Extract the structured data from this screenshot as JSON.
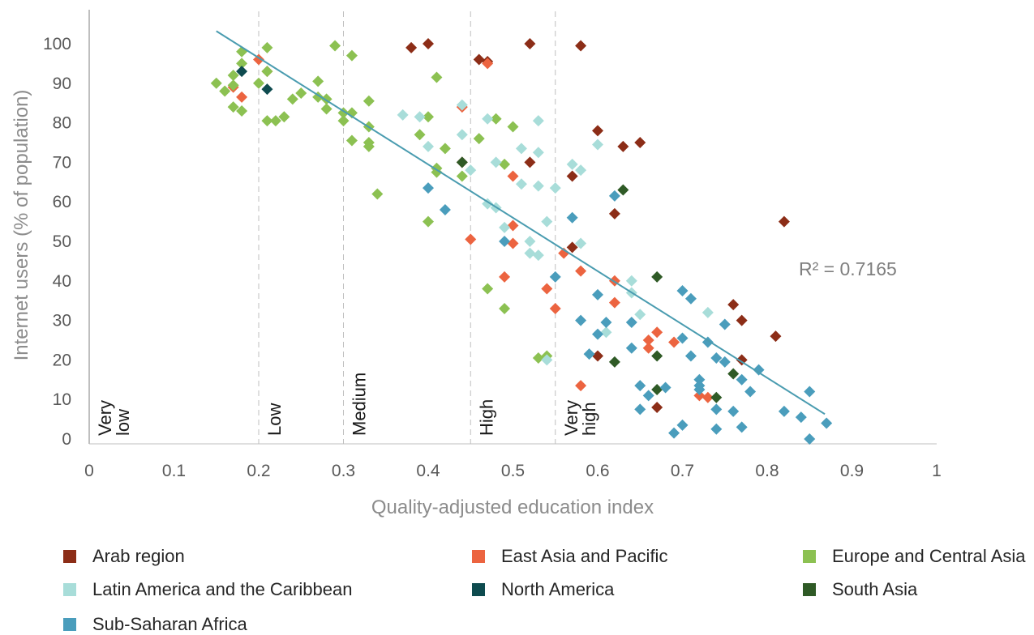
{
  "chart_data": {
    "type": "scatter",
    "xlabel": "Quality-adjusted education index",
    "ylabel": "Internet users (% of population)",
    "xlim": [
      0,
      1
    ],
    "ylim": [
      0,
      100
    ],
    "x_ticks": [
      "0",
      "0.1",
      "0.2",
      "0.3",
      "0.4",
      "0.5",
      "0.6",
      "0.7",
      "0.8",
      "0.9",
      "1"
    ],
    "y_ticks": [
      "0",
      "10",
      "20",
      "30",
      "40",
      "50",
      "60",
      "70",
      "80",
      "90",
      "100"
    ],
    "grid": false,
    "legend_position": "bottom",
    "bands": [
      {
        "line1": "Very",
        "line2": "low",
        "x": 0.0
      },
      {
        "line1": "Low",
        "line2": "",
        "x": 0.2
      },
      {
        "line1": "Medium",
        "line2": "",
        "x": 0.3
      },
      {
        "line1": "High",
        "line2": "",
        "x": 0.45
      },
      {
        "line1": "Very",
        "line2": "high",
        "x": 0.55
      }
    ],
    "trendline": {
      "x": [
        0.15,
        0.868
      ],
      "y": [
        103.2,
        6.3
      ],
      "color": "#4a9cb0",
      "label": "R² = 0.7165"
    },
    "series": [
      {
        "name": "Arab region",
        "color": "#8c2d17",
        "points": [
          [
            0.38,
            99
          ],
          [
            0.4,
            100
          ],
          [
            0.52,
            100
          ],
          [
            0.58,
            99.5
          ],
          [
            0.46,
            96
          ],
          [
            0.47,
            95.5
          ],
          [
            0.6,
            78
          ],
          [
            0.63,
            74
          ],
          [
            0.65,
            75
          ],
          [
            0.52,
            70
          ],
          [
            0.44,
            70
          ],
          [
            0.57,
            66.5
          ],
          [
            0.62,
            57
          ],
          [
            0.82,
            55
          ],
          [
            0.57,
            48.5
          ],
          [
            0.76,
            34
          ],
          [
            0.77,
            30
          ],
          [
            0.81,
            26
          ],
          [
            0.77,
            20
          ],
          [
            0.6,
            21
          ],
          [
            0.67,
            8
          ]
        ]
      },
      {
        "name": "East Asia and Pacific",
        "color": "#ec6440",
        "points": [
          [
            0.2,
            96
          ],
          [
            0.21,
            93
          ],
          [
            0.17,
            89
          ],
          [
            0.18,
            86.5
          ],
          [
            0.47,
            95
          ],
          [
            0.44,
            84
          ],
          [
            0.5,
            66.5
          ],
          [
            0.45,
            50.5
          ],
          [
            0.5,
            54
          ],
          [
            0.5,
            49.5
          ],
          [
            0.49,
            41
          ],
          [
            0.54,
            38
          ],
          [
            0.55,
            33
          ],
          [
            0.56,
            47
          ],
          [
            0.58,
            42.5
          ],
          [
            0.62,
            40
          ],
          [
            0.62,
            34.5
          ],
          [
            0.67,
            27
          ],
          [
            0.66,
            25
          ],
          [
            0.66,
            23
          ],
          [
            0.69,
            24.5
          ],
          [
            0.72,
            11
          ],
          [
            0.73,
            10.5
          ],
          [
            0.58,
            13.5
          ]
        ]
      },
      {
        "name": "Europe and Central Asia",
        "color": "#8cc152",
        "points": [
          [
            0.18,
            98
          ],
          [
            0.21,
            99
          ],
          [
            0.29,
            99.5
          ],
          [
            0.31,
            97
          ],
          [
            0.18,
            95
          ],
          [
            0.17,
            92
          ],
          [
            0.21,
            93
          ],
          [
            0.15,
            90
          ],
          [
            0.16,
            88
          ],
          [
            0.2,
            90
          ],
          [
            0.17,
            89.5
          ],
          [
            0.27,
            90.5
          ],
          [
            0.41,
            91.5
          ],
          [
            0.17,
            84
          ],
          [
            0.18,
            83
          ],
          [
            0.22,
            80.5
          ],
          [
            0.21,
            80.5
          ],
          [
            0.23,
            81.5
          ],
          [
            0.24,
            86
          ],
          [
            0.25,
            87.5
          ],
          [
            0.27,
            86.5
          ],
          [
            0.28,
            86
          ],
          [
            0.28,
            83.5
          ],
          [
            0.3,
            82.5
          ],
          [
            0.31,
            82.5
          ],
          [
            0.3,
            80.5
          ],
          [
            0.33,
            85.5
          ],
          [
            0.33,
            79
          ],
          [
            0.31,
            75.5
          ],
          [
            0.33,
            75
          ],
          [
            0.33,
            74
          ],
          [
            0.39,
            77
          ],
          [
            0.4,
            81.5
          ],
          [
            0.42,
            73.5
          ],
          [
            0.46,
            76
          ],
          [
            0.48,
            81
          ],
          [
            0.5,
            79
          ],
          [
            0.49,
            69.5
          ],
          [
            0.41,
            68.5
          ],
          [
            0.41,
            67.5
          ],
          [
            0.44,
            66.5
          ],
          [
            0.34,
            62
          ],
          [
            0.4,
            55
          ],
          [
            0.47,
            38
          ],
          [
            0.49,
            33
          ],
          [
            0.53,
            20.5
          ],
          [
            0.54,
            21
          ]
        ]
      },
      {
        "name": "Latin America and the Caribbean",
        "color": "#a8ddd9",
        "points": [
          [
            0.37,
            82
          ],
          [
            0.39,
            81.5
          ],
          [
            0.44,
            84.5
          ],
          [
            0.47,
            81
          ],
          [
            0.53,
            80.5
          ],
          [
            0.44,
            77
          ],
          [
            0.4,
            74
          ],
          [
            0.45,
            68
          ],
          [
            0.48,
            70
          ],
          [
            0.51,
            73.5
          ],
          [
            0.53,
            72.5
          ],
          [
            0.57,
            69.5
          ],
          [
            0.58,
            68
          ],
          [
            0.51,
            64.5
          ],
          [
            0.53,
            64
          ],
          [
            0.55,
            63.5
          ],
          [
            0.6,
            74.5
          ],
          [
            0.47,
            59.5
          ],
          [
            0.48,
            58.5
          ],
          [
            0.49,
            53.5
          ],
          [
            0.52,
            50
          ],
          [
            0.52,
            47
          ],
          [
            0.53,
            46.5
          ],
          [
            0.54,
            55
          ],
          [
            0.58,
            49.5
          ],
          [
            0.64,
            40
          ],
          [
            0.64,
            37
          ],
          [
            0.65,
            31.5
          ],
          [
            0.61,
            27
          ],
          [
            0.73,
            32
          ],
          [
            0.54,
            20
          ]
        ]
      },
      {
        "name": "North America",
        "color": "#0e4b4f",
        "points": [
          [
            0.18,
            93
          ],
          [
            0.21,
            88.5
          ]
        ]
      },
      {
        "name": "South Asia",
        "color": "#2f5a26",
        "points": [
          [
            0.44,
            70
          ],
          [
            0.63,
            63
          ],
          [
            0.67,
            41
          ],
          [
            0.67,
            21
          ],
          [
            0.62,
            19.5
          ],
          [
            0.76,
            16.5
          ],
          [
            0.67,
            12.5
          ],
          [
            0.74,
            10.5
          ]
        ]
      },
      {
        "name": "Sub-Saharan Africa",
        "color": "#4a9dbc",
        "points": [
          [
            0.4,
            63.5
          ],
          [
            0.42,
            58
          ],
          [
            0.57,
            56
          ],
          [
            0.62,
            61.5
          ],
          [
            0.49,
            50
          ],
          [
            0.55,
            41
          ],
          [
            0.6,
            36.5
          ],
          [
            0.58,
            30
          ],
          [
            0.61,
            29.5
          ],
          [
            0.6,
            26.5
          ],
          [
            0.64,
            29.5
          ],
          [
            0.64,
            23
          ],
          [
            0.59,
            21.5
          ],
          [
            0.7,
            37.5
          ],
          [
            0.71,
            35.5
          ],
          [
            0.7,
            25.5
          ],
          [
            0.73,
            24.5
          ],
          [
            0.75,
            29
          ],
          [
            0.71,
            21
          ],
          [
            0.74,
            20.5
          ],
          [
            0.75,
            19.5
          ],
          [
            0.79,
            17.5
          ],
          [
            0.77,
            15
          ],
          [
            0.72,
            15
          ],
          [
            0.72,
            13.5
          ],
          [
            0.72,
            12.5
          ],
          [
            0.78,
            12
          ],
          [
            0.65,
            13.5
          ],
          [
            0.66,
            11
          ],
          [
            0.68,
            13
          ],
          [
            0.65,
            7.5
          ],
          [
            0.7,
            3.5
          ],
          [
            0.69,
            1.5
          ],
          [
            0.74,
            7.5
          ],
          [
            0.74,
            2.5
          ],
          [
            0.76,
            7
          ],
          [
            0.77,
            3
          ],
          [
            0.82,
            7
          ],
          [
            0.84,
            5.5
          ],
          [
            0.85,
            12
          ],
          [
            0.87,
            4
          ],
          [
            0.85,
            0
          ]
        ]
      }
    ]
  }
}
